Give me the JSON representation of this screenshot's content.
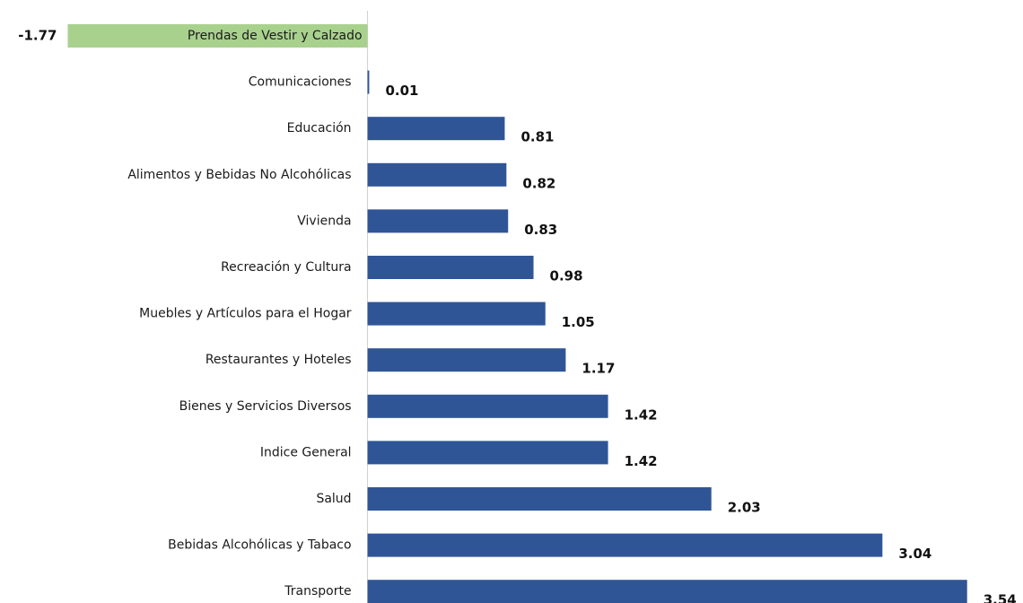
{
  "chart_data": {
    "type": "barh",
    "categories": [
      "Prendas de Vestir y Calzado",
      "Comunicaciones",
      "Educación",
      "Alimentos y Bebidas No Alcohólicas",
      "Vivienda",
      "Recreación y Cultura",
      "Muebles y Artículos para el Hogar",
      "Restaurantes y Hoteles",
      "Bienes y Servicios Diversos",
      "Indice General",
      "Salud",
      "Bebidas Alcohólicas y Tabaco",
      "Transporte"
    ],
    "values": [
      -1.77,
      0.01,
      0.81,
      0.82,
      0.83,
      0.98,
      1.05,
      1.17,
      1.42,
      1.42,
      2.03,
      3.04,
      3.54
    ],
    "color": "#2f5597",
    "negative_color": "#a9d18e",
    "xlim": [
      -2.17,
      3.87
    ]
  }
}
